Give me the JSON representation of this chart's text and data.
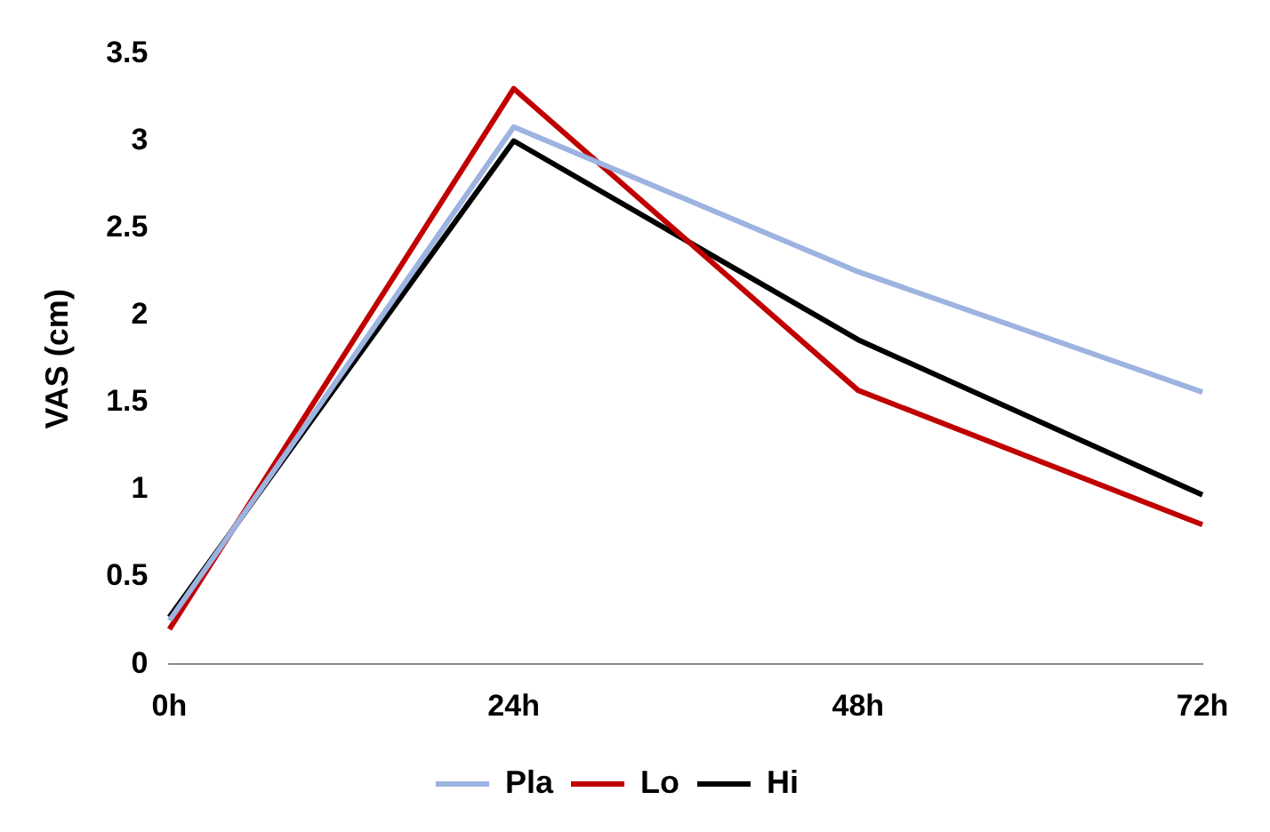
{
  "chart_data": {
    "type": "line",
    "ylabel": "VAS (cm)",
    "categories": [
      "0h",
      "24h",
      "48h",
      "72h"
    ],
    "series": [
      {
        "name": "Pla",
        "color": "#9db3e0",
        "values": [
          0.25,
          3.08,
          2.25,
          1.56
        ]
      },
      {
        "name": "Lo",
        "color": "#c00000",
        "values": [
          0.2,
          3.3,
          1.57,
          0.8
        ]
      },
      {
        "name": "Hi",
        "color": "#000000",
        "values": [
          0.27,
          3.0,
          1.86,
          0.97
        ]
      }
    ],
    "ylim": [
      0,
      3.5
    ],
    "yticks": [
      0,
      0.5,
      1,
      1.5,
      2,
      2.5,
      3,
      3.5
    ],
    "grid": false,
    "legend": "bottom",
    "marker": "none",
    "line_style": "solid"
  }
}
